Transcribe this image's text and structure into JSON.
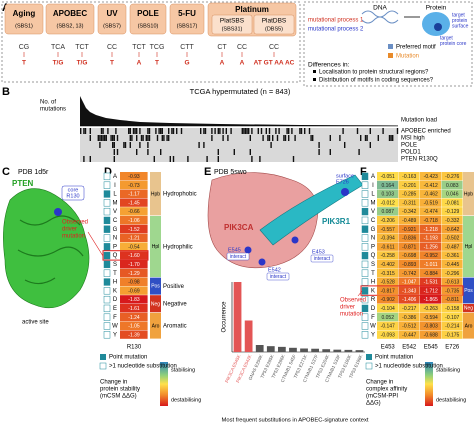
{
  "panel_labels": [
    "A",
    "B",
    "C",
    "D",
    "E",
    "F"
  ],
  "panel_a": {
    "signatures": [
      {
        "name": "Aging",
        "signature": "(SBS1)",
        "motifs": [
          {
            "context": "CG",
            "mutation": "T"
          }
        ]
      },
      {
        "name": "APOBEC",
        "signature": "(SBS2, 13)",
        "motifs": [
          {
            "context": "TCA",
            "mutation": "T/G"
          },
          {
            "context": "TCT",
            "mutation": "T/G"
          }
        ]
      },
      {
        "name": "UV",
        "signature": "(SBS7)",
        "motifs": [
          {
            "context": "CC",
            "mutation": "T"
          }
        ]
      },
      {
        "name": "POLE",
        "signature": "(SBS10)",
        "motifs": [
          {
            "context": "TCT",
            "mutation": "A"
          },
          {
            "context": "TCG",
            "mutation": "T"
          }
        ]
      },
      {
        "name": "5-FU",
        "signature": "(SBS17)",
        "motifs": [
          {
            "context": "CTT",
            "mutation": "G"
          }
        ]
      }
    ],
    "platinum": {
      "name": "Platinum",
      "subs": [
        {
          "name": "PlatSBS",
          "signature": "(SBS31)",
          "motifs": [
            {
              "context": "CT",
              "mutation": "A"
            },
            {
              "context": "CC",
              "mutation": "A"
            }
          ]
        },
        {
          "name": "PlatDBS",
          "signature": "(DBS5)",
          "motifs": [
            {
              "context": "CC",
              "mutation": "AT GT AA AC"
            }
          ]
        }
      ]
    },
    "schematic": {
      "process1": "mutational process 1",
      "process2": "mutational process 2",
      "dna": "DNA",
      "protein": "Protein",
      "surface": [
        "target",
        "protein",
        "surface"
      ],
      "core": [
        "target",
        "protein core"
      ],
      "motif": "Preferred motif",
      "mutation": "Mutation",
      "differences": "Differences in:",
      "questions": [
        "Localisation to protein structural regions?",
        "Distribution of motifs in coding sequences?"
      ]
    }
  },
  "panel_b": {
    "title": "TCGA hypermutated (n = 843)",
    "y_label": [
      "No. of",
      "mutations"
    ],
    "rows": [
      "Mutation load",
      "APOBEC enriched",
      "MSI high",
      "POLE",
      "POLD1",
      "PTEN R130Q"
    ]
  },
  "panel_c": {
    "pdb": "PDB 1d5r",
    "protein": "PTEN",
    "core": [
      "core",
      "R130"
    ],
    "site": "active site"
  },
  "panel_d": {
    "observed": [
      "Observed",
      "driver",
      "mutation"
    ],
    "position": "R130",
    "groups": [
      {
        "abbr": "Hpb",
        "name": "Hydrophobic",
        "color": "#e8c48e",
        "rows": [
          {
            "aa": "A",
            "value": "-0.93",
            "point": false
          },
          {
            "aa": "I",
            "value": "-0.73",
            "point": false
          },
          {
            "aa": "L",
            "value": "-1.17",
            "point": true
          },
          {
            "aa": "M",
            "value": "-1.45",
            "point": false
          },
          {
            "aa": "V",
            "value": "-0.66",
            "point": false
          }
        ]
      },
      {
        "abbr": "Hpl",
        "name": "Hydrophilic",
        "color": "#9fd78f",
        "rows": [
          {
            "aa": "C",
            "value": "-1.06",
            "point": true
          },
          {
            "aa": "G",
            "value": "-1.52",
            "point": true
          },
          {
            "aa": "N",
            "value": "-1.21",
            "point": false
          },
          {
            "aa": "P",
            "value": "-0.54",
            "point": true
          },
          {
            "aa": "Q",
            "value": "-1.60",
            "point": true,
            "observed": true
          },
          {
            "aa": "S",
            "value": "-1.70",
            "point": true
          },
          {
            "aa": "T",
            "value": "-1.29",
            "point": false
          }
        ]
      },
      {
        "abbr": "Pos",
        "name": "Positive",
        "color": "#2f4fc4",
        "rows": [
          {
            "aa": "H",
            "value": "-0.98",
            "point": true
          },
          {
            "aa": "K",
            "value": "-0.69",
            "point": false
          }
        ]
      },
      {
        "abbr": "Neg",
        "name": "Negative",
        "color": "#d2321f",
        "rows": [
          {
            "aa": "D",
            "value": "-1.83",
            "point": false
          },
          {
            "aa": "E",
            "value": "-1.61",
            "point": false
          }
        ]
      },
      {
        "abbr": "Aro",
        "name": "Aromatic",
        "color": "#f0a23e",
        "rows": [
          {
            "aa": "F",
            "value": "-1.24",
            "point": false
          },
          {
            "aa": "W",
            "value": "-1.05",
            "point": false
          },
          {
            "aa": "Y",
            "value": "-1.39",
            "point": false
          }
        ]
      }
    ],
    "legend": {
      "point": "Point mutation",
      "multi": ">1 nucleotide substitution",
      "scale": [
        "Change in",
        "protein stability",
        "(mCSM ΔΔG)"
      ],
      "stab": "stabilising",
      "destab": "destabilising"
    }
  },
  "panel_e": {
    "pdb": "PDB 5swo",
    "surface": [
      "surface",
      "E726"
    ],
    "protein1": "PIK3CA",
    "protein2": "PIK3R1",
    "sites": [
      {
        "name": "E453",
        "tag": "interact"
      },
      {
        "name": "E545",
        "tag": "interact"
      },
      {
        "name": "E542",
        "tag": "interact"
      }
    ],
    "chart": {
      "type": "bar",
      "y_label": "Occurrence",
      "x_label": "Most frequent substitutions in APOBEC-signature context",
      "categories": [
        "PIK3CA E545K",
        "PIK3CA E542K",
        "GNAS E259K",
        "TP53 E285K",
        "TP53 E286K",
        "CTNNB1 S45F",
        "TP53 E271K",
        "CTNNB1 S37F",
        "TP53 E204K",
        "CTNNB1 S33F",
        "TP53 E180K",
        "TP53 E198K"
      ],
      "values": [
        300,
        135,
        30,
        25,
        22,
        18,
        15,
        14,
        12,
        10,
        9,
        8
      ],
      "colors": [
        "#e35555",
        "#e35555",
        "#555555",
        "#555555",
        "#555555",
        "#555555",
        "#555555",
        "#555555",
        "#555555",
        "#555555",
        "#555555",
        "#555555"
      ]
    }
  },
  "panel_f": {
    "columns": [
      "E453",
      "E542",
      "E545",
      "E726"
    ],
    "observed": [
      "Observed",
      "driver",
      "mutation"
    ],
    "groups": [
      {
        "abbr": "Hpb",
        "color": "#e8c48e",
        "rows": [
          {
            "aa": "A",
            "values": [
              "-0.051",
              "-0.163",
              "-0.423",
              "-0.276"
            ],
            "point": true
          },
          {
            "aa": "I",
            "values": [
              "0.164",
              "-0.201",
              "-0.412",
              "0.083"
            ],
            "point": false
          },
          {
            "aa": "L",
            "values": [
              "0.103",
              "-0.285",
              "-0.462",
              "0.046"
            ],
            "point": false
          },
          {
            "aa": "M",
            "values": [
              "-0.012",
              "-0.311",
              "-0.519",
              "-0.081"
            ],
            "point": false
          },
          {
            "aa": "V",
            "values": [
              "0.087",
              "-0.342",
              "-0.474",
              "-0.129"
            ],
            "point": true
          }
        ]
      },
      {
        "abbr": "Hpl",
        "color": "#9fd78f",
        "rows": [
          {
            "aa": "C",
            "values": [
              "-0.206",
              "-0.489",
              "-0.718",
              "-0.332"
            ],
            "point": false
          },
          {
            "aa": "G",
            "values": [
              "-0.557",
              "-0.921",
              "-1.218",
              "-0.642"
            ],
            "point": true
          },
          {
            "aa": "N",
            "values": [
              "-0.394",
              "-0.836",
              "-1.193",
              "-0.502"
            ],
            "point": false
          },
          {
            "aa": "P",
            "values": [
              "-0.611",
              "-0.871",
              "-1.256",
              "-0.487"
            ],
            "point": false
          },
          {
            "aa": "Q",
            "values": [
              "-0.258",
              "-0.698",
              "-0.952",
              "-0.361"
            ],
            "point": true
          },
          {
            "aa": "S",
            "values": [
              "-0.402",
              "-0.893",
              "-1.011",
              "-0.445"
            ],
            "point": false
          },
          {
            "aa": "T",
            "values": [
              "-0.315",
              "-0.742",
              "-0.884",
              "-0.296"
            ],
            "point": false
          }
        ]
      },
      {
        "abbr": "Pos",
        "color": "#2f4fc4",
        "rows": [
          {
            "aa": "H",
            "values": [
              "-0.528",
              "-1.047",
              "-1.531",
              "-0.613"
            ],
            "point": false
          },
          {
            "aa": "K",
            "values": [
              "-0.817",
              "-1.343",
              "-1.712",
              "-0.735"
            ],
            "point": true,
            "observed": true
          },
          {
            "aa": "R",
            "values": [
              "-0.902",
              "-1.406",
              "-1.865",
              "-0.811"
            ],
            "point": false
          }
        ]
      },
      {
        "abbr": "Neg",
        "color": "#d2321f",
        "rows": [
          {
            "aa": "D",
            "values": [
              "-0.104",
              "-0.217",
              "-0.263",
              "-0.158"
            ],
            "point": true
          }
        ]
      },
      {
        "abbr": "Aro",
        "color": "#f0a23e",
        "rows": [
          {
            "aa": "F",
            "values": [
              "0.052",
              "-0.386",
              "-0.594",
              "-0.107"
            ],
            "point": false
          },
          {
            "aa": "W",
            "values": [
              "-0.147",
              "-0.512",
              "-0.803",
              "-0.214"
            ],
            "point": false
          },
          {
            "aa": "Y",
            "values": [
              "-0.093",
              "-0.447",
              "-0.688",
              "-0.175"
            ],
            "point": false
          }
        ]
      }
    ],
    "legend": {
      "point": "Point mutation",
      "multi": ">1 nucleotide substitution",
      "scale": [
        "Change in",
        "complex affinity",
        "(mCSM-PPI",
        "ΔΔG)"
      ],
      "stab": "stabilising",
      "destab": "destabilising"
    }
  }
}
